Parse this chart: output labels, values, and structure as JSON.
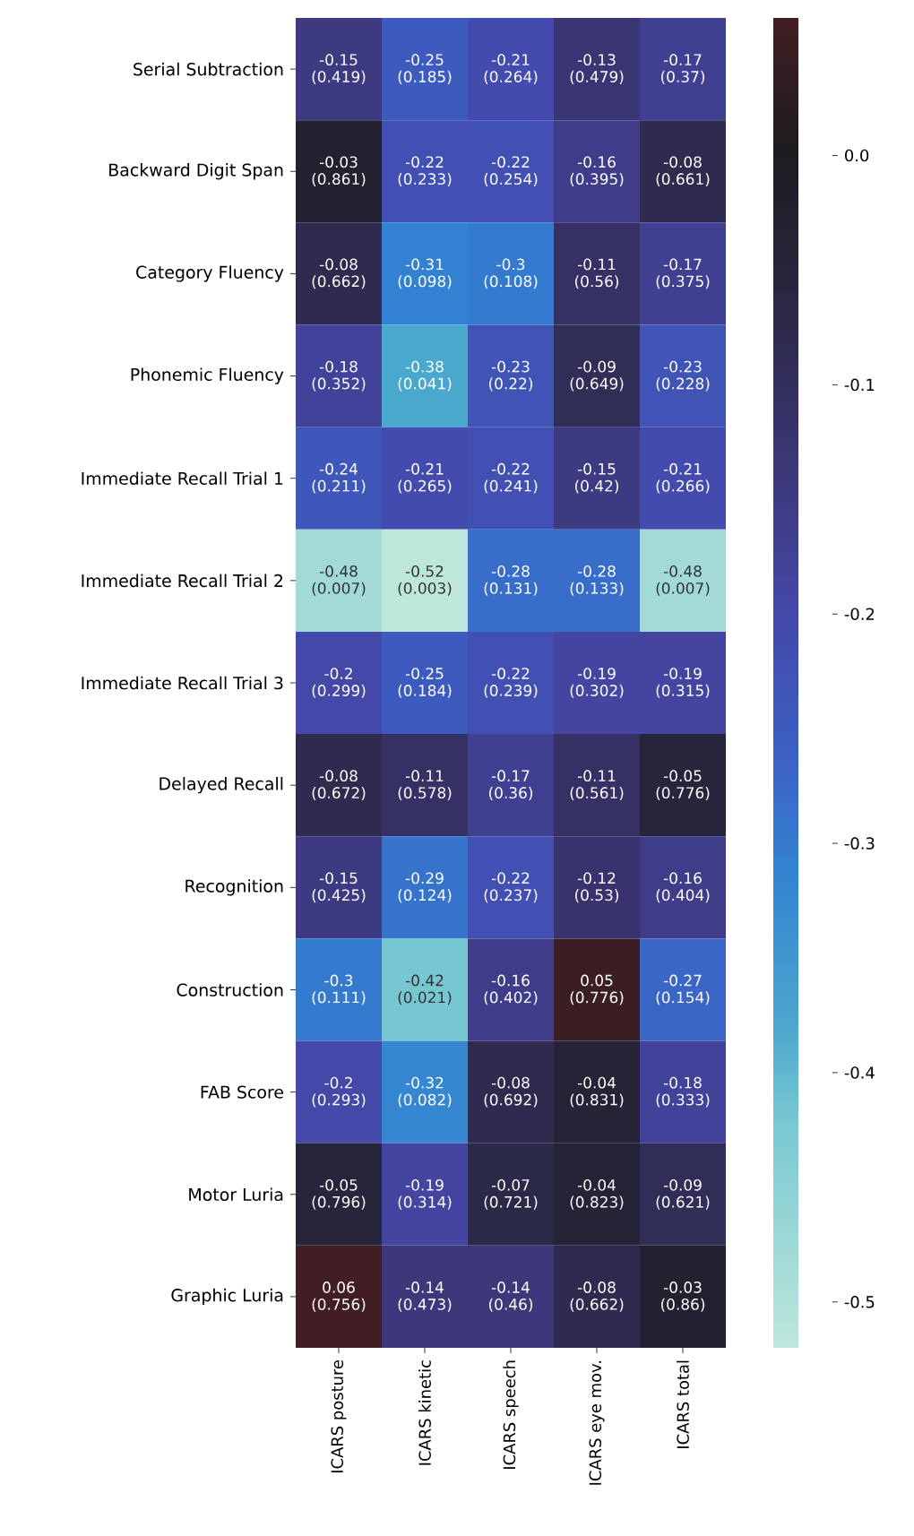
{
  "chart_data": {
    "type": "heatmap",
    "categories": [
      "ICARS posture",
      "ICARS kinetic",
      "ICARS speech",
      "ICARS eye mov.",
      "ICARS total"
    ],
    "y_categories": [
      "Serial Subtraction",
      "Backward Digit Span",
      "Category Fluency",
      "Phonemic Fluency",
      "Immediate Recall Trial 1",
      "Immediate Recall Trial 2",
      "Immediate Recall  Trial 3",
      "Delayed Recall",
      "Recognition",
      "Construction",
      "FAB Score",
      "Motor Luria",
      "Graphic Luria"
    ],
    "cells": [
      [
        -0.15,
        -0.25,
        -0.21,
        -0.13,
        -0.17
      ],
      [
        -0.03,
        -0.22,
        -0.22,
        -0.16,
        -0.08
      ],
      [
        -0.08,
        -0.31,
        -0.3,
        -0.11,
        -0.17
      ],
      [
        -0.18,
        -0.38,
        -0.23,
        -0.09,
        -0.23
      ],
      [
        -0.24,
        -0.21,
        -0.22,
        -0.15,
        -0.21
      ],
      [
        -0.48,
        -0.52,
        -0.28,
        -0.28,
        -0.48
      ],
      [
        -0.2,
        -0.25,
        -0.22,
        -0.19,
        -0.19
      ],
      [
        -0.08,
        -0.11,
        -0.17,
        -0.11,
        -0.05
      ],
      [
        -0.15,
        -0.29,
        -0.22,
        -0.12,
        -0.16
      ],
      [
        -0.3,
        -0.42,
        -0.16,
        0.05,
        -0.27
      ],
      [
        -0.2,
        -0.32,
        -0.08,
        -0.04,
        -0.18
      ],
      [
        -0.05,
        -0.19,
        -0.07,
        -0.04,
        -0.09
      ],
      [
        0.06,
        -0.14,
        -0.14,
        -0.08,
        -0.03
      ]
    ],
    "cell_labels": [
      [
        "-0.15 (0.419)",
        "-0.25 (0.185)",
        "-0.21 (0.264)",
        "-0.13 (0.479)",
        "-0.17 (0.37)"
      ],
      [
        "-0.03 (0.861)",
        "-0.22 (0.233)",
        "-0.22 (0.254)",
        "-0.16 (0.395)",
        "-0.08 (0.661)"
      ],
      [
        "-0.08 (0.662)",
        "-0.31 (0.098)",
        "-0.3 (0.108)",
        "-0.11 (0.56)",
        "-0.17 (0.375)"
      ],
      [
        "-0.18 (0.352)",
        "-0.38 (0.041)",
        "-0.23 (0.22)",
        "-0.09 (0.649)",
        "-0.23 (0.228)"
      ],
      [
        "-0.24 (0.211)",
        "-0.21 (0.265)",
        "-0.22 (0.241)",
        "-0.15 (0.42)",
        "-0.21 (0.266)"
      ],
      [
        "-0.48 (0.007)",
        "-0.52 (0.003)",
        "-0.28 (0.131)",
        "-0.28 (0.133)",
        "-0.48 (0.007)"
      ],
      [
        "-0.2 (0.299)",
        "-0.25 (0.184)",
        "-0.22 (0.239)",
        "-0.19 (0.302)",
        "-0.19 (0.315)"
      ],
      [
        "-0.08 (0.672)",
        "-0.11 (0.578)",
        "-0.17 (0.36)",
        "-0.11 (0.561)",
        "-0.05 (0.776)"
      ],
      [
        "-0.15 (0.425)",
        "-0.29 (0.124)",
        "-0.22 (0.237)",
        "-0.12 (0.53)",
        "-0.16 (0.404)"
      ],
      [
        "-0.3 (0.111)",
        "-0.42 (0.021)",
        "-0.16 (0.402)",
        "0.05 (0.776)",
        "-0.27 (0.154)"
      ],
      [
        "-0.2 (0.293)",
        "-0.32 (0.082)",
        "-0.08 (0.692)",
        "-0.04 (0.831)",
        "-0.18 (0.333)"
      ],
      [
        "-0.05 (0.796)",
        "-0.19 (0.314)",
        "-0.07 (0.721)",
        "-0.04 (0.823)",
        "-0.09 (0.621)"
      ],
      [
        "0.06 (0.756)",
        "-0.14 (0.473)",
        "-0.14 (0.46)",
        "-0.08 (0.662)",
        "-0.03 (0.86)"
      ]
    ],
    "clim": [
      -0.52,
      0.06
    ],
    "cticks": [
      {
        "value": 0,
        "label": "0.0"
      },
      -0.1,
      -0.2,
      -0.3,
      -0.4,
      -0.5
    ]
  }
}
